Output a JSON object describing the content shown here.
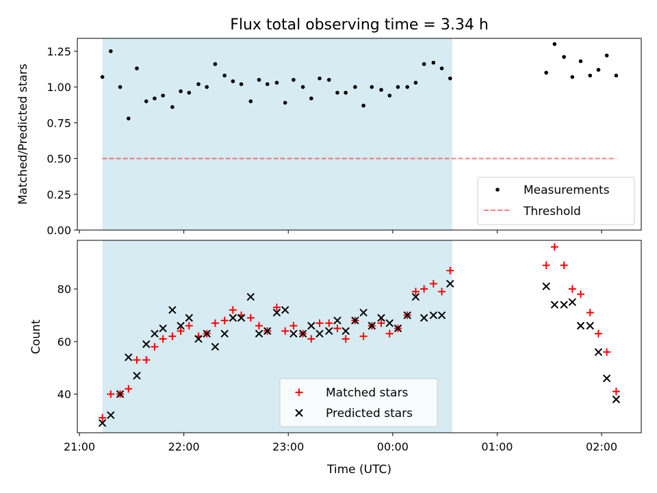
{
  "figure": {
    "title": "Flux total observing time = 3.34 h",
    "xlabel": "Time (UTC)",
    "x_ticks": [
      "21:00",
      "22:00",
      "23:00",
      "00:00",
      "01:00",
      "02:00"
    ]
  },
  "colors": {
    "shade": "#add8e6",
    "measurements": "#000000",
    "threshold": "#ff0000",
    "matched": "#ff0000",
    "predicted": "#000000"
  },
  "chart_data": [
    {
      "type": "scatter",
      "ylabel": "Matched/Predicted stars",
      "xlim_hours": [
        20.98,
        26.38
      ],
      "ylim": [
        0,
        1.34
      ],
      "y_ticks": [
        "0.00",
        "0.25",
        "0.50",
        "0.75",
        "1.00",
        "1.25"
      ],
      "shaded_span_hours": [
        21.22,
        24.57
      ],
      "legend_position": "lower-right",
      "series": [
        {
          "name": "Measurements",
          "marker": "dot",
          "x": [
            21.22,
            21.3,
            21.39,
            21.47,
            21.55,
            21.64,
            21.72,
            21.8,
            21.89,
            21.97,
            22.05,
            22.14,
            22.22,
            22.3,
            22.39,
            22.47,
            22.55,
            22.64,
            22.72,
            22.8,
            22.89,
            22.97,
            23.05,
            23.14,
            23.22,
            23.3,
            23.39,
            23.47,
            23.55,
            23.64,
            23.72,
            23.8,
            23.89,
            23.97,
            24.05,
            24.14,
            24.22,
            24.3,
            24.39,
            24.47,
            24.55,
            25.47,
            25.55,
            25.64,
            25.72,
            25.8,
            25.89,
            25.97,
            26.05,
            26.14
          ],
          "y": [
            1.07,
            1.25,
            1.0,
            0.78,
            1.13,
            0.9,
            0.92,
            0.94,
            0.86,
            0.97,
            0.96,
            1.02,
            1.0,
            1.16,
            1.08,
            1.04,
            1.02,
            0.9,
            1.05,
            1.02,
            1.03,
            0.89,
            1.05,
            1.0,
            0.92,
            1.06,
            1.05,
            0.96,
            0.96,
            1.0,
            0.87,
            1.0,
            0.98,
            0.94,
            1.0,
            1.0,
            1.03,
            1.16,
            1.17,
            1.13,
            1.06,
            1.1,
            1.3,
            1.21,
            1.07,
            1.18,
            1.08,
            1.12,
            1.22,
            1.08
          ]
        },
        {
          "name": "Threshold",
          "style": "dashed",
          "x": [
            21.22,
            26.14
          ],
          "y": [
            0.5,
            0.5
          ]
        }
      ]
    },
    {
      "type": "scatter",
      "ylabel": "Count",
      "xlim_hours": [
        20.98,
        26.38
      ],
      "ylim": [
        25.3,
        98.5
      ],
      "y_ticks": [
        "40",
        "60",
        "80"
      ],
      "shaded_span_hours": [
        21.22,
        24.57
      ],
      "legend_position": "lower-center",
      "series": [
        {
          "name": "Matched stars",
          "marker": "plus",
          "x": [
            21.22,
            21.3,
            21.39,
            21.47,
            21.55,
            21.64,
            21.72,
            21.8,
            21.89,
            21.97,
            22.05,
            22.14,
            22.22,
            22.3,
            22.39,
            22.47,
            22.55,
            22.64,
            22.72,
            22.8,
            22.89,
            22.97,
            23.05,
            23.14,
            23.22,
            23.3,
            23.39,
            23.47,
            23.55,
            23.64,
            23.72,
            23.8,
            23.89,
            23.97,
            24.05,
            24.14,
            24.22,
            24.3,
            24.39,
            24.47,
            24.55,
            25.47,
            25.55,
            25.64,
            25.72,
            25.8,
            25.89,
            25.97,
            26.05,
            26.14
          ],
          "y": [
            31,
            40,
            40,
            42,
            53,
            53,
            58,
            61,
            62,
            64,
            66,
            62,
            63,
            67,
            68,
            72,
            70,
            69,
            66,
            64,
            73,
            64,
            66,
            63,
            61,
            67,
            67,
            65,
            61,
            68,
            62,
            66,
            67,
            63,
            65,
            70,
            79,
            80,
            82,
            79,
            87,
            89,
            96,
            89,
            80,
            78,
            71,
            63,
            56,
            41
          ]
        },
        {
          "name": "Predicted stars",
          "marker": "x",
          "x": [
            21.22,
            21.3,
            21.39,
            21.47,
            21.55,
            21.64,
            21.72,
            21.8,
            21.89,
            21.97,
            22.05,
            22.14,
            22.22,
            22.3,
            22.39,
            22.47,
            22.55,
            22.64,
            22.72,
            22.8,
            22.89,
            22.97,
            23.05,
            23.14,
            23.22,
            23.3,
            23.39,
            23.47,
            23.55,
            23.64,
            23.72,
            23.8,
            23.89,
            23.97,
            24.05,
            24.14,
            24.22,
            24.3,
            24.39,
            24.47,
            24.55,
            25.47,
            25.55,
            25.64,
            25.72,
            25.8,
            25.89,
            25.97,
            26.05,
            26.14
          ],
          "y": [
            29,
            32,
            40,
            54,
            47,
            59,
            63,
            65,
            72,
            66,
            69,
            61,
            63,
            58,
            63,
            69,
            69,
            77,
            63,
            64,
            71,
            72,
            63,
            63,
            66,
            63,
            64,
            68,
            64,
            68,
            71,
            66,
            69,
            67,
            65,
            70,
            77,
            69,
            70,
            70,
            82,
            81,
            74,
            74,
            75,
            66,
            66,
            56,
            46,
            38
          ]
        }
      ]
    }
  ]
}
